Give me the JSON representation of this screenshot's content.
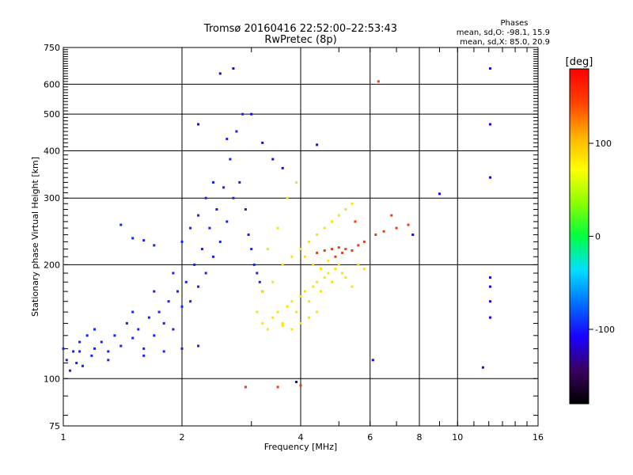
{
  "chart_data": {
    "type": "scatter",
    "title": "Tromsø 20160416 22:52:00–22:53:43",
    "subtitle": "RwPretec (8p)",
    "xlabel": "Frequency [MHz]",
    "ylabel": "Stationary phase Virtual Height [km]",
    "x_scale": "log",
    "y_scale": "log",
    "xlim": [
      1,
      16
    ],
    "ylim": [
      75,
      750
    ],
    "x_ticks": [
      1,
      2,
      4,
      6,
      8,
      10,
      16
    ],
    "y_ticks": [
      75,
      100,
      200,
      300,
      400,
      500,
      600,
      750
    ],
    "grid": true,
    "stats": {
      "heading": "Phases",
      "line_o": "mean, sd,O: -98.1, 15.9",
      "line_x": "mean, sd,X:  85.0, 20.9"
    },
    "colorbar": {
      "label": "[deg]",
      "range": [
        -180,
        180
      ],
      "ticks": [
        100,
        0,
        -100
      ],
      "colors": [
        "#000000",
        "#3a0060",
        "#1a00ff",
        "#0070ff",
        "#00e0ff",
        "#00ff40",
        "#8cff00",
        "#ffff00",
        "#ffb000",
        "#ff4000",
        "#ff0000"
      ]
    },
    "series": [
      {
        "phase": -98,
        "points": [
          [
            1.0,
            120
          ],
          [
            1.02,
            112
          ],
          [
            1.04,
            105
          ],
          [
            1.06,
            118
          ],
          [
            1.08,
            110
          ],
          [
            1.1,
            125
          ],
          [
            1.12,
            108
          ],
          [
            1.15,
            130
          ],
          [
            1.18,
            115
          ],
          [
            1.2,
            120
          ],
          [
            1.25,
            125
          ],
          [
            1.3,
            118
          ],
          [
            1.35,
            130
          ],
          [
            1.4,
            122
          ],
          [
            1.45,
            140
          ],
          [
            1.5,
            128
          ],
          [
            1.55,
            135
          ],
          [
            1.6,
            120
          ],
          [
            1.65,
            145
          ],
          [
            1.7,
            130
          ],
          [
            1.75,
            150
          ],
          [
            1.8,
            140
          ],
          [
            1.85,
            160
          ],
          [
            1.9,
            135
          ],
          [
            1.95,
            170
          ],
          [
            2.0,
            155
          ],
          [
            2.05,
            180
          ],
          [
            2.1,
            160
          ],
          [
            2.15,
            200
          ],
          [
            2.2,
            175
          ],
          [
            2.25,
            220
          ],
          [
            2.3,
            190
          ],
          [
            2.35,
            250
          ],
          [
            2.4,
            210
          ],
          [
            2.45,
            280
          ],
          [
            2.5,
            230
          ],
          [
            2.55,
            320
          ],
          [
            2.6,
            260
          ],
          [
            2.65,
            380
          ],
          [
            2.7,
            300
          ],
          [
            2.75,
            450
          ],
          [
            2.8,
            330
          ],
          [
            2.85,
            500
          ],
          [
            2.9,
            280
          ],
          [
            2.95,
            240
          ],
          [
            3.0,
            220
          ],
          [
            3.05,
            200
          ],
          [
            3.1,
            190
          ],
          [
            3.15,
            180
          ],
          [
            3.2,
            170
          ],
          [
            1.2,
            135
          ],
          [
            1.5,
            150
          ],
          [
            1.7,
            170
          ],
          [
            1.9,
            190
          ],
          [
            2.0,
            230
          ],
          [
            2.1,
            250
          ],
          [
            2.2,
            270
          ],
          [
            2.3,
            300
          ],
          [
            2.4,
            330
          ],
          [
            2.6,
            430
          ],
          [
            1.5,
            235
          ],
          [
            1.6,
            232
          ],
          [
            1.7,
            225
          ],
          [
            1.4,
            255
          ],
          [
            1.1,
            118
          ],
          [
            1.3,
            112
          ],
          [
            1.6,
            115
          ],
          [
            1.8,
            118
          ],
          [
            2.0,
            120
          ],
          [
            2.2,
            122
          ]
        ]
      },
      {
        "phase": 85,
        "points": [
          [
            3.1,
            150
          ],
          [
            3.2,
            140
          ],
          [
            3.3,
            135
          ],
          [
            3.4,
            145
          ],
          [
            3.5,
            150
          ],
          [
            3.6,
            140
          ],
          [
            3.7,
            155
          ],
          [
            3.8,
            160
          ],
          [
            3.9,
            150
          ],
          [
            4.0,
            165
          ],
          [
            4.1,
            170
          ],
          [
            4.2,
            160
          ],
          [
            4.3,
            175
          ],
          [
            4.4,
            180
          ],
          [
            4.5,
            170
          ],
          [
            4.6,
            185
          ],
          [
            4.7,
            190
          ],
          [
            4.8,
            180
          ],
          [
            4.9,
            195
          ],
          [
            5.0,
            200
          ],
          [
            5.1,
            190
          ],
          [
            5.2,
            185
          ],
          [
            5.4,
            175
          ],
          [
            5.6,
            200
          ],
          [
            5.8,
            195
          ],
          [
            3.2,
            170
          ],
          [
            3.4,
            180
          ],
          [
            3.6,
            200
          ],
          [
            3.8,
            210
          ],
          [
            4.0,
            220
          ],
          [
            4.2,
            230
          ],
          [
            4.4,
            240
          ],
          [
            4.6,
            250
          ],
          [
            4.8,
            260
          ],
          [
            5.0,
            270
          ],
          [
            5.2,
            280
          ],
          [
            5.4,
            290
          ],
          [
            3.3,
            220
          ],
          [
            3.5,
            250
          ],
          [
            3.7,
            300
          ],
          [
            3.9,
            330
          ],
          [
            4.1,
            210
          ],
          [
            4.3,
            200
          ],
          [
            4.5,
            195
          ],
          [
            4.7,
            205
          ],
          [
            3.6,
            138
          ],
          [
            3.8,
            135
          ],
          [
            4.0,
            140
          ],
          [
            4.2,
            145
          ],
          [
            4.4,
            150
          ]
        ]
      },
      {
        "phase": 150,
        "points": [
          [
            4.4,
            215
          ],
          [
            4.6,
            218
          ],
          [
            4.8,
            220
          ],
          [
            5.0,
            222
          ],
          [
            5.2,
            220
          ],
          [
            5.4,
            218
          ],
          [
            5.6,
            225
          ],
          [
            5.8,
            230
          ],
          [
            6.2,
            240
          ],
          [
            6.5,
            245
          ],
          [
            7.0,
            250
          ],
          [
            7.5,
            255
          ],
          [
            6.3,
            610
          ],
          [
            3.5,
            95
          ],
          [
            4.0,
            96
          ],
          [
            2.9,
            95
          ],
          [
            6.8,
            270
          ],
          [
            5.5,
            260
          ],
          [
            4.9,
            210
          ],
          [
            5.1,
            215
          ]
        ]
      },
      {
        "phase": -110,
        "points": [
          [
            12.1,
            660
          ],
          [
            12.1,
            470
          ],
          [
            12.1,
            340
          ],
          [
            12.1,
            185
          ],
          [
            12.1,
            175
          ],
          [
            12.1,
            160
          ],
          [
            12.1,
            145
          ],
          [
            11.6,
            107
          ],
          [
            9.0,
            308
          ],
          [
            4.4,
            415
          ],
          [
            7.7,
            240
          ],
          [
            6.1,
            112
          ],
          [
            3.9,
            98
          ],
          [
            2.2,
            470
          ],
          [
            2.5,
            640
          ],
          [
            2.7,
            660
          ],
          [
            3.0,
            500
          ],
          [
            3.2,
            420
          ],
          [
            3.4,
            380
          ],
          [
            3.6,
            360
          ]
        ]
      }
    ]
  }
}
